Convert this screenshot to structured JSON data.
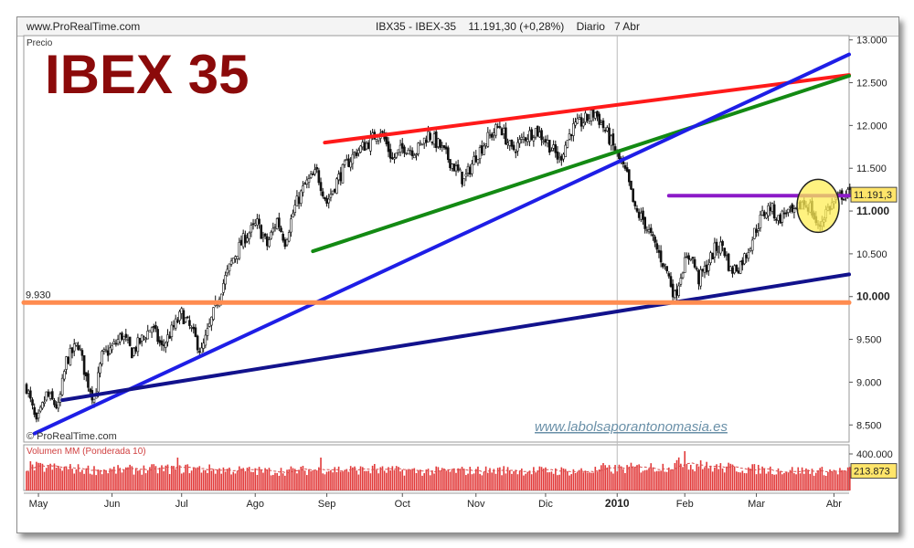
{
  "header": {
    "site": "www.ProRealTime.com",
    "instrument": "IBX35 - IBEX-35",
    "quote": "11.191,30 (+0,28%)",
    "period": "Diario",
    "date": "7 Abr"
  },
  "chart_data": [
    {
      "type": "candlestick",
      "title": "IBEX 35",
      "panel_label": "Precio",
      "watermark_bottom": "© ProRealTime.com",
      "website": "www.labolsaporantonomasia.es",
      "ylim": [
        8300,
        13050
      ],
      "y_ticks": [
        13000,
        12500,
        12000,
        11500,
        11000,
        10500,
        10000,
        9500,
        9000,
        8500
      ],
      "y_tick_labels": [
        "13.000",
        "12.500",
        "12.000",
        "11.500",
        "11.000",
        "10.500",
        "10.000",
        "9.500",
        "9.000",
        "8.500"
      ],
      "last_value_label": "11.191,3",
      "last_value": 11191.3,
      "support_level_label": "9.930",
      "support_level": 9930,
      "x_labels": [
        "May",
        "Jun",
        "Jul",
        "Ago",
        "Sep",
        "Oct",
        "Nov",
        "Dic",
        "2010",
        "Feb",
        "Mar",
        "Abr"
      ],
      "x_label_index": [
        6,
        43,
        78,
        115,
        151,
        189,
        226,
        261,
        297,
        331,
        367,
        406
      ],
      "bar_count": 415,
      "close_path": [
        [
          0,
          8950
        ],
        [
          5,
          8500
        ],
        [
          10,
          8850
        ],
        [
          16,
          8700
        ],
        [
          20,
          9250
        ],
        [
          26,
          9450
        ],
        [
          30,
          9050
        ],
        [
          34,
          8800
        ],
        [
          38,
          9300
        ],
        [
          43,
          9400
        ],
        [
          48,
          9550
        ],
        [
          53,
          9350
        ],
        [
          58,
          9500
        ],
        [
          63,
          9650
        ],
        [
          68,
          9400
        ],
        [
          73,
          9600
        ],
        [
          78,
          9800
        ],
        [
          83,
          9600
        ],
        [
          88,
          9350
        ],
        [
          92,
          9650
        ],
        [
          98,
          10100
        ],
        [
          104,
          10450
        ],
        [
          110,
          10700
        ],
        [
          116,
          10850
        ],
        [
          121,
          10600
        ],
        [
          126,
          10900
        ],
        [
          130,
          10650
        ],
        [
          135,
          11050
        ],
        [
          140,
          11300
        ],
        [
          146,
          11450
        ],
        [
          151,
          11100
        ],
        [
          156,
          11350
        ],
        [
          161,
          11550
        ],
        [
          166,
          11700
        ],
        [
          172,
          11800
        ],
        [
          178,
          11950
        ],
        [
          184,
          11600
        ],
        [
          190,
          11750
        ],
        [
          196,
          11700
        ],
        [
          202,
          11900
        ],
        [
          208,
          11750
        ],
        [
          214,
          11550
        ],
        [
          220,
          11350
        ],
        [
          226,
          11650
        ],
        [
          232,
          11850
        ],
        [
          238,
          12000
        ],
        [
          244,
          11700
        ],
        [
          250,
          11850
        ],
        [
          256,
          11950
        ],
        [
          262,
          11800
        ],
        [
          268,
          11600
        ],
        [
          274,
          11950
        ],
        [
          280,
          12050
        ],
        [
          286,
          12150
        ],
        [
          292,
          11900
        ],
        [
          297,
          11650
        ],
        [
          302,
          11400
        ],
        [
          306,
          11000
        ],
        [
          310,
          10900
        ],
        [
          314,
          10700
        ],
        [
          318,
          10500
        ],
        [
          322,
          10300
        ],
        [
          326,
          10000
        ],
        [
          330,
          10350
        ],
        [
          334,
          10500
        ],
        [
          338,
          10200
        ],
        [
          342,
          10350
        ],
        [
          346,
          10550
        ],
        [
          350,
          10600
        ],
        [
          354,
          10300
        ],
        [
          358,
          10350
        ],
        [
          362,
          10500
        ],
        [
          366,
          10750
        ],
        [
          370,
          10950
        ],
        [
          374,
          11050
        ],
        [
          378,
          10900
        ],
        [
          382,
          11000
        ],
        [
          386,
          10950
        ],
        [
          390,
          11100
        ],
        [
          394,
          11050
        ],
        [
          398,
          10800
        ],
        [
          402,
          11000
        ],
        [
          406,
          11100
        ],
        [
          410,
          11191
        ]
      ],
      "trendlines": [
        {
          "color": "#ff1a1a",
          "from": [
            150,
            11800
          ],
          "to": [
            415,
            12590
          ]
        },
        {
          "color": "#138a13",
          "from": [
            144,
            10530
          ],
          "to": [
            415,
            12580
          ]
        },
        {
          "color": "#1e1ee6",
          "from": [
            4,
            8400
          ],
          "to": [
            415,
            12830
          ]
        },
        {
          "color": "#12128c",
          "from": [
            18,
            8790
          ],
          "to": [
            415,
            10260
          ]
        },
        {
          "color": "#8c1ac8",
          "from": [
            323,
            11180
          ],
          "to": [
            415,
            11180
          ]
        },
        {
          "color": "#ff8c50",
          "from": [
            0,
            9930
          ],
          "to": [
            415,
            9930
          ]
        }
      ],
      "highlight_circle": {
        "color": "#ffee55",
        "center": [
          398,
          11060
        ]
      }
    },
    {
      "type": "bar",
      "title": "Volumen MM (Ponderada 10)",
      "ylim": [
        0,
        500000
      ],
      "y_ticks": [
        400000
      ],
      "y_tick_labels": [
        "400.000"
      ],
      "last_value_label": "213.873",
      "last_value": 213873,
      "bar_color": "#e23a3a",
      "average_color": "#d85050",
      "volume_path": [
        [
          0,
          260000
        ],
        [
          40,
          220000
        ],
        [
          80,
          240000
        ],
        [
          120,
          210000
        ],
        [
          160,
          230000
        ],
        [
          200,
          210000
        ],
        [
          240,
          220000
        ],
        [
          280,
          210000
        ],
        [
          300,
          240000
        ],
        [
          320,
          260000
        ],
        [
          330,
          300000
        ],
        [
          340,
          260000
        ],
        [
          360,
          240000
        ],
        [
          380,
          220000
        ],
        [
          400,
          210000
        ],
        [
          415,
          214000
        ]
      ],
      "volume_spikes": [
        [
          76,
          360000
        ],
        [
          148,
          360000
        ],
        [
          331,
          430000
        ],
        [
          339,
          330000
        ],
        [
          290,
          300000
        ],
        [
          175,
          290000
        ]
      ]
    }
  ]
}
